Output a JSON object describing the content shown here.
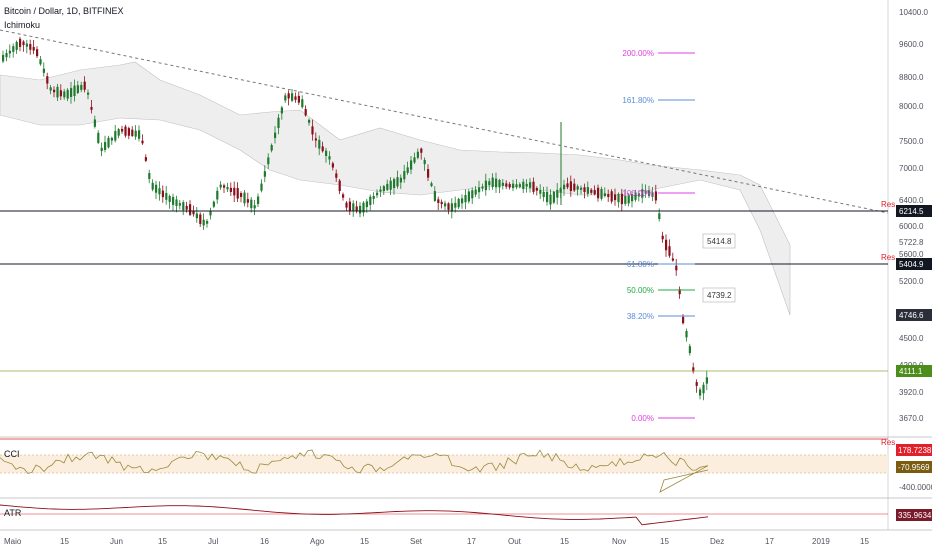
{
  "header": {
    "symbol": "Bitcoin / Dollar, 1D, BITFINEX",
    "indicator": "Ichimoku"
  },
  "panes": {
    "cci_label": "CCI",
    "atr_label": "ATR"
  },
  "price_axis": {
    "ticks": [
      "10400.0",
      "9600.0",
      "8800.0",
      "8000.0",
      "7500.0",
      "7000.0",
      "6400.0",
      "6000.0",
      "5722.8",
      "5600.0",
      "5200.0",
      "4500.0",
      "4200.0",
      "3920.0",
      "3670.0"
    ]
  },
  "price_tags": [
    {
      "text": "6214.5",
      "bg": "#131722",
      "color": "#ffffff",
      "label": "Res"
    },
    {
      "text": "5404.9",
      "bg": "#131722",
      "color": "#ffffff",
      "label": "Res"
    },
    {
      "text": "4746.6",
      "bg": "#2a2e39",
      "color": "#ffffff",
      "label": ""
    },
    {
      "text": "4111.1",
      "bg": "#4b8e1b",
      "color": "#ffffff",
      "label": ""
    }
  ],
  "cci_axis": {
    "tags": [
      {
        "text": "178.7238",
        "bg": "#e0202a",
        "color": "#ffffff",
        "label": "Res"
      },
      {
        "text": "-70.9569",
        "bg": "#7a5b10",
        "color": "#ffffff",
        "label": ""
      }
    ],
    "ticks": [
      "-400.0000"
    ]
  },
  "atr_axis": {
    "tags": [
      {
        "text": "335.9634",
        "bg": "#7a1a2a",
        "color": "#ffffff"
      }
    ]
  },
  "fib_levels": [
    {
      "label": "200.00%",
      "color": "#e040e0"
    },
    {
      "label": "161.80%",
      "color": "#5b8cd8"
    },
    {
      "label": "100.00%",
      "color": "#e040e0"
    },
    {
      "label": "61.80%",
      "color": "#5b8cd8"
    },
    {
      "label": "50.00%",
      "color": "#22aa44"
    },
    {
      "label": "38.20%",
      "color": "#5b8cd8"
    },
    {
      "label": "0.00%",
      "color": "#e040e0"
    }
  ],
  "annotations": [
    {
      "text": "5414.8"
    },
    {
      "text": "4739.2"
    }
  ],
  "time_axis": [
    "Maio",
    "15",
    "Jun",
    "15",
    "Jul",
    "16",
    "Ago",
    "15",
    "Set",
    "17",
    "Out",
    "15",
    "Nov",
    "15",
    "Dez",
    "17",
    "2019",
    "15"
  ],
  "colors": {
    "up": "#1f7a2e",
    "down": "#8b0f1a",
    "cloud": "#eeeeee",
    "trend": "#777777"
  }
}
